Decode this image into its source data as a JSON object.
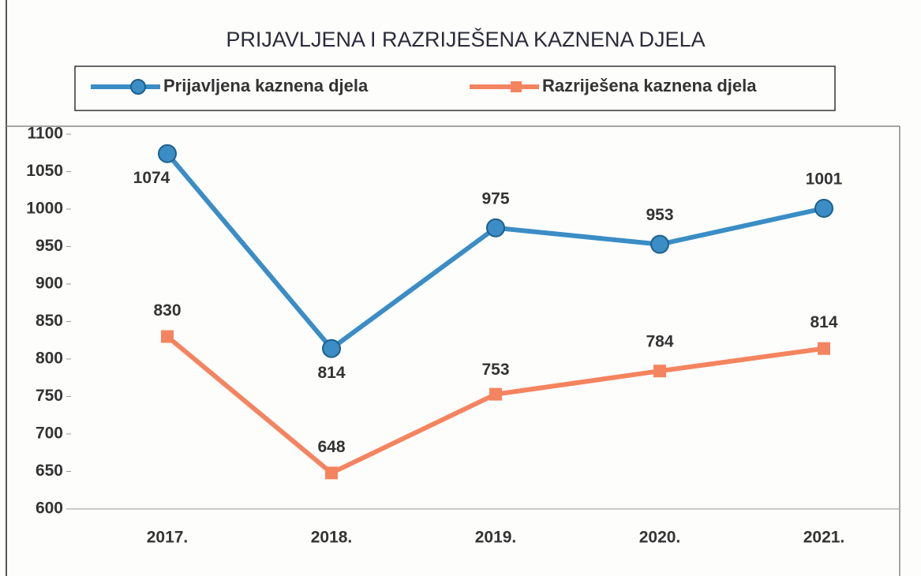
{
  "chart_data": {
    "type": "line",
    "title": "PRIJAVLJENA I RAZRIJEŠENA KAZNENA DJELA",
    "categories": [
      "2017.",
      "2018.",
      "2019.",
      "2020.",
      "2021."
    ],
    "series": [
      {
        "name": "Prijavljena kaznena djela",
        "color": "#3a8dc5",
        "values": [
          1074,
          814,
          975,
          953,
          1001
        ]
      },
      {
        "name": "Razriješena kaznena djela",
        "color": "#f4845f",
        "values": [
          830,
          648,
          753,
          784,
          814
        ]
      }
    ],
    "ylim": [
      600,
      1100
    ],
    "yticks": [
      600,
      650,
      700,
      750,
      800,
      850,
      900,
      950,
      1000,
      1050,
      1100
    ],
    "grid": false,
    "legend": "top"
  }
}
